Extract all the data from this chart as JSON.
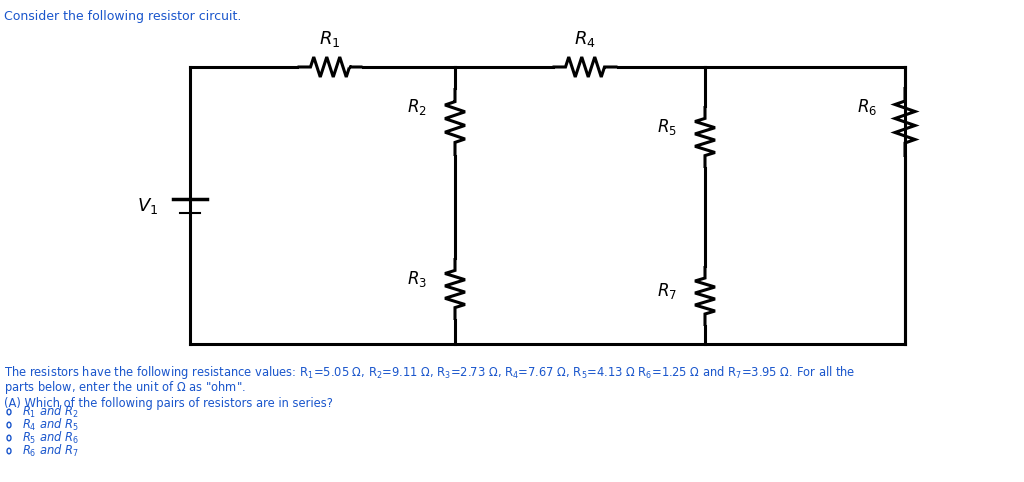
{
  "bg_color": "#ffffff",
  "title": "Consider the following resistor circuit.",
  "title_color": "#1a56cc",
  "title_fontsize": 9,
  "circuit_lw": 2.2,
  "desc_line1": "The resistors have the following resistance values: R₁=5.05 Ω, R₂=9.11 Ω, R₃=2.73 Ω, R₄=7.67 Ω, R₅=4.13 Ω R₆=1.25 Ω and R₇=3.95 Ω. For all the",
  "desc_line2": "parts below, enter the unit of Ω as \"ohm\".",
  "question": "(A) Which of the following pairs of resistors are in series?",
  "choices": [
    "R₁ and R₂",
    "R₄ and R₅",
    "R₅ and R₆",
    "R₆ and R₇"
  ],
  "text_color": "#1a56cc",
  "black": "#000000"
}
